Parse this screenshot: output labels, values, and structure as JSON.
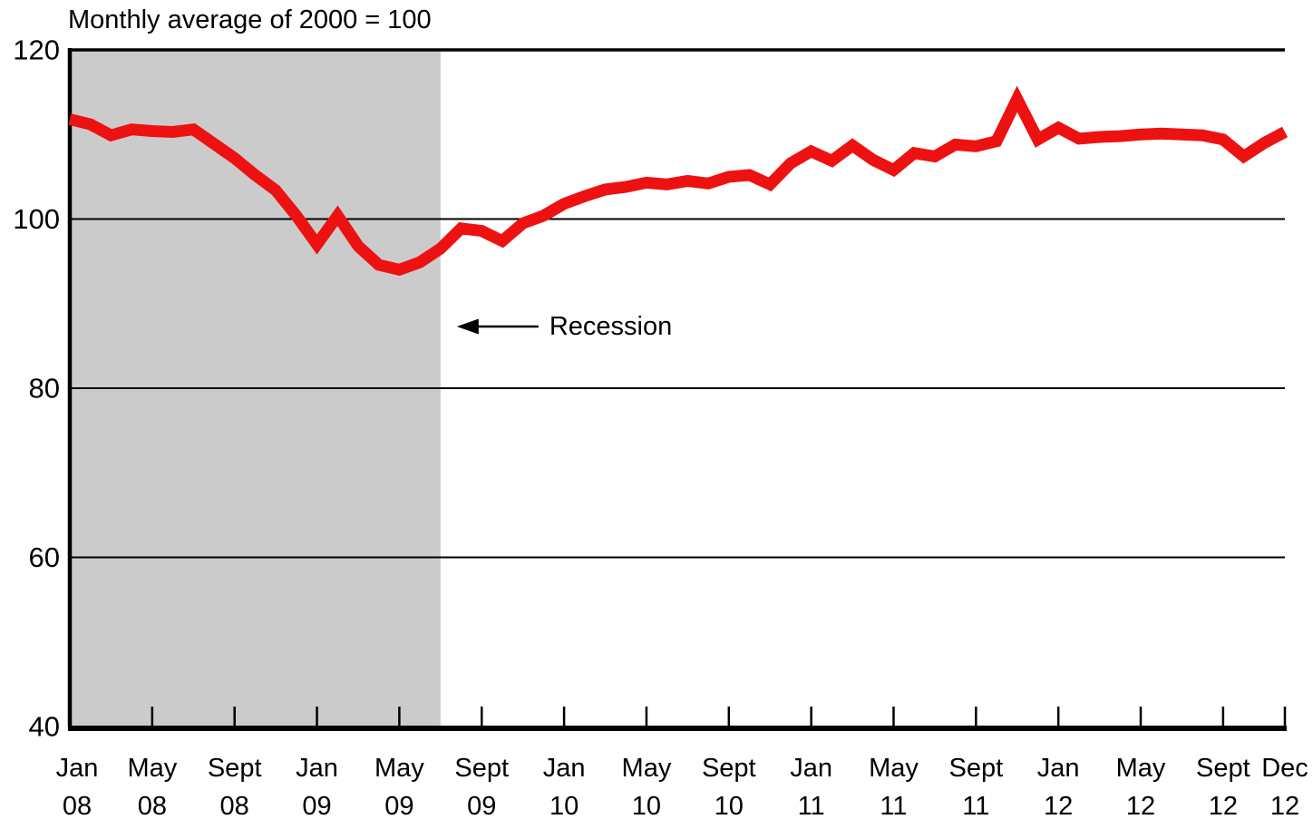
{
  "title": "Monthly average of 2000 = 100",
  "annotation": {
    "label": "Recession"
  },
  "colors": {
    "line": "#EE1111",
    "recession_shading": "#CBCBCB",
    "axis": "#000000",
    "text": "#000000",
    "background": "#FFFFFF"
  },
  "chart_data": {
    "type": "line",
    "title": "Monthly average of 2000 = 100",
    "ylabel": "",
    "xlabel": "",
    "ylim": [
      40,
      120
    ],
    "yticks": [
      120,
      100,
      80,
      60,
      40
    ],
    "grid_values": [
      100,
      80,
      60
    ],
    "grid": "horizontal-only",
    "legend": "none",
    "x": [
      "Jan 08",
      "Feb 08",
      "Mar 08",
      "Apr 08",
      "May 08",
      "Jun 08",
      "Jul 08",
      "Aug 08",
      "Sep 08",
      "Oct 08",
      "Nov 08",
      "Dec 08",
      "Jan 09",
      "Feb 09",
      "Mar 09",
      "Apr 09",
      "May 09",
      "Jun 09",
      "Jul 09",
      "Aug 09",
      "Sep 09",
      "Oct 09",
      "Nov 09",
      "Dec 09",
      "Jan 10",
      "Feb 10",
      "Mar 10",
      "Apr 10",
      "May 10",
      "Jun 10",
      "Jul 10",
      "Aug 10",
      "Sep 10",
      "Oct 10",
      "Nov 10",
      "Dec 10",
      "Jan 11",
      "Feb 11",
      "Mar 11",
      "Apr 11",
      "May 11",
      "Jun 11",
      "Jul 11",
      "Aug 11",
      "Sep 11",
      "Oct 11",
      "Nov 11",
      "Dec 11",
      "Jan 12",
      "Feb 12",
      "Mar 12",
      "Apr 12",
      "May 12",
      "Jun 12",
      "Jul 12",
      "Aug 12",
      "Sep 12",
      "Oct 12",
      "Nov 12",
      "Dec 12"
    ],
    "series": [
      {
        "name": "Index (monthly average of 2000 = 100)",
        "values": [
          111.8,
          111.2,
          109.9,
          110.6,
          110.4,
          110.3,
          110.6,
          108.9,
          107.2,
          105.2,
          103.4,
          100.4,
          97.0,
          100.4,
          96.8,
          94.6,
          94.0,
          94.9,
          96.5,
          98.9,
          98.6,
          97.4,
          99.5,
          100.4,
          101.8,
          102.7,
          103.5,
          103.8,
          104.3,
          104.1,
          104.5,
          104.2,
          105.0,
          105.2,
          104.1,
          106.6,
          108.0,
          106.9,
          108.7,
          107.0,
          105.8,
          107.8,
          107.4,
          108.8,
          108.6,
          109.2,
          114.2,
          109.4,
          110.8,
          109.5,
          109.7,
          109.8,
          110.0,
          110.1,
          110.0,
          109.9,
          109.4,
          107.4,
          109.0,
          110.3
        ]
      }
    ],
    "xtick_labels": [
      {
        "month": "Jan",
        "year": "08",
        "index": 0
      },
      {
        "month": "May",
        "year": "08",
        "index": 4
      },
      {
        "month": "Sept",
        "year": "08",
        "index": 8
      },
      {
        "month": "Jan",
        "year": "09",
        "index": 12
      },
      {
        "month": "May",
        "year": "09",
        "index": 16
      },
      {
        "month": "Sept",
        "year": "09",
        "index": 20
      },
      {
        "month": "Jan",
        "year": "10",
        "index": 24
      },
      {
        "month": "May",
        "year": "10",
        "index": 28
      },
      {
        "month": "Sept",
        "year": "10",
        "index": 32
      },
      {
        "month": "Jan",
        "year": "11",
        "index": 36
      },
      {
        "month": "May",
        "year": "11",
        "index": 40
      },
      {
        "month": "Sept",
        "year": "11",
        "index": 44
      },
      {
        "month": "Jan",
        "year": "12",
        "index": 48
      },
      {
        "month": "May",
        "year": "12",
        "index": 52
      },
      {
        "month": "Sept",
        "year": "12",
        "index": 56
      },
      {
        "month": "Dec",
        "year": "12",
        "index": 59
      }
    ],
    "tick_month_indices": [
      4,
      8,
      12,
      16,
      20,
      24,
      28,
      32,
      36,
      40,
      44,
      48,
      52,
      56,
      59
    ],
    "recession_shading": {
      "start": "Jan 2008",
      "end": "Jun 2009",
      "start_month_index": 0,
      "end_month_index": 18
    }
  }
}
